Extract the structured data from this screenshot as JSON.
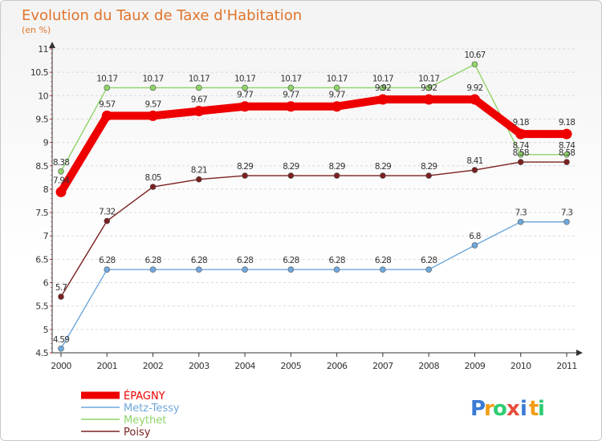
{
  "chart_data": {
    "type": "line",
    "title": "Evolution du Taux de Taxe d'Habitation",
    "subtitle": "(en %)",
    "x": [
      "2000",
      "2001",
      "2002",
      "2003",
      "2004",
      "2005",
      "2006",
      "2007",
      "2008",
      "2009",
      "2010",
      "2011"
    ],
    "ylim": [
      4.5,
      11
    ],
    "yticks": [
      "4.5",
      "5",
      "5.5",
      "6",
      "6.5",
      "7",
      "7.5",
      "8",
      "8.5",
      "9",
      "9.5",
      "10",
      "10.5",
      "11"
    ],
    "grid": "horizontal-dashed",
    "legend_position": "bottom-left",
    "series": [
      {
        "name": "ÉPAGNY",
        "color": "#ee0000",
        "values": [
          7.94,
          9.57,
          9.57,
          9.67,
          9.77,
          9.77,
          9.77,
          9.92,
          9.92,
          9.92,
          9.18,
          9.18
        ],
        "labels": [
          "7.94",
          "9.57",
          "9.57",
          "9.67",
          "9.77",
          "9.77",
          "9.77",
          "9.92",
          "9.92",
          "9.92",
          "9.18",
          "9.18"
        ]
      },
      {
        "name": "Metz-Tessy",
        "color": "#6fa8dc",
        "values": [
          4.59,
          6.28,
          6.28,
          6.28,
          6.28,
          6.28,
          6.28,
          6.28,
          6.28,
          6.8,
          7.3,
          7.3
        ],
        "labels": [
          "4.59",
          "6.28",
          "6.28",
          "6.28",
          "6.28",
          "6.28",
          "6.28",
          "6.28",
          "6.28",
          "6.8",
          "7.3",
          "7.3"
        ]
      },
      {
        "name": "Meythet",
        "color": "#8fd46a",
        "values": [
          8.38,
          10.17,
          10.17,
          10.17,
          10.17,
          10.17,
          10.17,
          10.17,
          10.17,
          10.67,
          8.74,
          8.74
        ],
        "labels": [
          "8.38",
          "10.17",
          "10.17",
          "10.17",
          "10.17",
          "10.17",
          "10.17",
          "10.17",
          "10.17",
          "10.67",
          "8.74",
          "8.74"
        ]
      },
      {
        "name": "Poisy",
        "color": "#7a2020",
        "values": [
          5.7,
          7.32,
          8.05,
          8.21,
          8.29,
          8.29,
          8.29,
          8.29,
          8.29,
          8.41,
          8.58,
          8.58
        ],
        "labels": [
          "5.7",
          "7.32",
          "8.05",
          "8.21",
          "8.29",
          "8.29",
          "8.29",
          "8.29",
          "8.29",
          "8.41",
          "8.58",
          "8.58"
        ]
      }
    ]
  },
  "brand": {
    "letters": [
      "P",
      "r",
      "o",
      "x",
      "i",
      "t",
      "i"
    ],
    "colors": [
      "#3a7bd5",
      "#f39c12",
      "#2ecc71",
      "#e74c3c",
      "#3a7bd5",
      "#f39c12",
      "#2ecc71"
    ]
  }
}
